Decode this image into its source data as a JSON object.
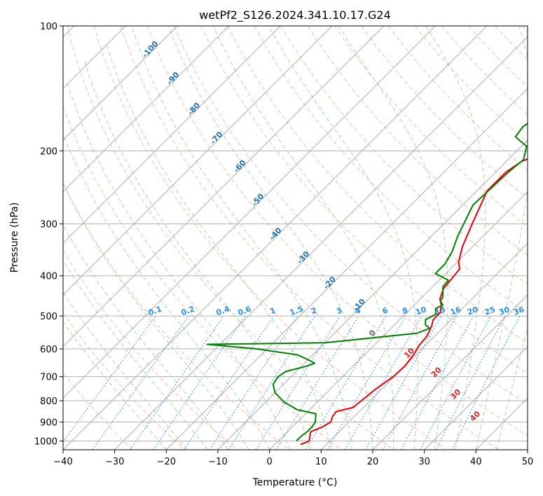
{
  "chart_data": {
    "type": "line",
    "title": "wetPf2_S126.2024.341.10.17.G24",
    "xlabel": "Temperature (°C)",
    "ylabel": "Pressure (hPa)",
    "xlim": [
      -40,
      50
    ],
    "ylim": [
      1050,
      100
    ],
    "y_scale": "log",
    "grid": true,
    "x_ticks": [
      -40,
      -30,
      -20,
      -10,
      0,
      10,
      20,
      30,
      40,
      50
    ],
    "y_ticks": [
      100,
      200,
      300,
      400,
      500,
      600,
      700,
      800,
      900,
      1000
    ],
    "colors": {
      "temperature": "#e8000b",
      "dewpoint": "#008000",
      "dry_adiabat": "#f4a582",
      "moist_adiabat": "#9fd39f",
      "mixing_ratio": "#2a8fe8",
      "isotherm": "#a0a0a0",
      "zero_isotherm": "#e0c9a6"
    },
    "series": [
      {
        "key": "temperature",
        "points": [
          [
            5.0,
            1020
          ],
          [
            6.0,
            1000
          ],
          [
            5.2,
            975
          ],
          [
            4.5,
            950
          ],
          [
            5.8,
            925
          ],
          [
            6.5,
            900
          ],
          [
            5.8,
            875
          ],
          [
            5.5,
            850
          ],
          [
            8.0,
            830
          ],
          [
            8.3,
            800
          ],
          [
            8.8,
            750
          ],
          [
            9.8,
            700
          ],
          [
            10.0,
            660
          ],
          [
            9.5,
            620
          ],
          [
            8.8,
            590
          ],
          [
            8.5,
            560
          ],
          [
            7.5,
            530
          ],
          [
            6.5,
            510
          ],
          [
            6.5,
            490
          ],
          [
            5.2,
            470
          ],
          [
            3.8,
            455
          ],
          [
            2.5,
            430
          ],
          [
            2.2,
            410
          ],
          [
            1.8,
            385
          ],
          [
            0.2,
            370
          ],
          [
            -2.0,
            340
          ],
          [
            -4.5,
            300
          ],
          [
            -8.0,
            250
          ],
          [
            -8.0,
            225
          ],
          [
            -7.0,
            212
          ],
          [
            -5.0,
            203
          ],
          [
            -2.0,
            194
          ],
          [
            2.0,
            186
          ],
          [
            8.0,
            176
          ],
          [
            13.0,
            166
          ],
          [
            16.0,
            158
          ],
          [
            18.0,
            145
          ],
          [
            22.0,
            132
          ],
          [
            24.0,
            125
          ],
          [
            26.0,
            117
          ],
          [
            28.0,
            110
          ],
          [
            31.0,
            104
          ],
          [
            33.0,
            100
          ]
        ]
      },
      {
        "key": "dewpoint",
        "points": [
          [
            3.5,
            1000
          ],
          [
            3.5,
            975
          ],
          [
            3.8,
            950
          ],
          [
            3.8,
            925
          ],
          [
            3.5,
            900
          ],
          [
            2.0,
            860
          ],
          [
            -2.5,
            840
          ],
          [
            -6.5,
            805
          ],
          [
            -10.0,
            765
          ],
          [
            -12.0,
            730
          ],
          [
            -12.5,
            700
          ],
          [
            -12.0,
            680
          ],
          [
            -9.0,
            660
          ],
          [
            -8.0,
            650
          ],
          [
            -9.5,
            640
          ],
          [
            -13.0,
            620
          ],
          [
            -22.0,
            600
          ],
          [
            -32.5,
            585
          ],
          [
            -10.0,
            580
          ],
          [
            6.0,
            550
          ],
          [
            7.5,
            535
          ],
          [
            6.0,
            525
          ],
          [
            5.0,
            510
          ],
          [
            6.0,
            495
          ],
          [
            4.8,
            480
          ],
          [
            5.5,
            470
          ],
          [
            4.3,
            460
          ],
          [
            4.0,
            450
          ],
          [
            2.0,
            425
          ],
          [
            1.8,
            410
          ],
          [
            -2.0,
            395
          ],
          [
            -2.0,
            375
          ],
          [
            -3.0,
            350
          ],
          [
            -5.0,
            320
          ],
          [
            -8.0,
            270
          ],
          [
            -7.5,
            225
          ],
          [
            -7.0,
            210
          ],
          [
            -9.0,
            195
          ],
          [
            -13.0,
            185
          ],
          [
            -13.5,
            175
          ],
          [
            -12.0,
            160
          ],
          [
            -10.0,
            145
          ],
          [
            -7.0,
            130
          ],
          [
            -5.0,
            120
          ],
          [
            -3.0,
            112
          ],
          [
            -1.0,
            104
          ],
          [
            0.0,
            100
          ]
        ]
      }
    ],
    "dry_adiabat_labels": [
      "-100",
      "-90",
      "-80",
      "-70",
      "-60",
      "-50",
      "-40",
      "-30",
      "-20",
      "-10"
    ],
    "mixing_ratio_labels": [
      "0.1",
      "0.2",
      "0.4",
      "0.6",
      "1",
      "1.5",
      "2",
      "3",
      "4",
      "6",
      "8",
      "10",
      "13",
      "16",
      "20",
      "25",
      "30",
      "36"
    ],
    "moist_adiabat_labels": [
      "0",
      "10",
      "20",
      "30",
      "40"
    ]
  }
}
